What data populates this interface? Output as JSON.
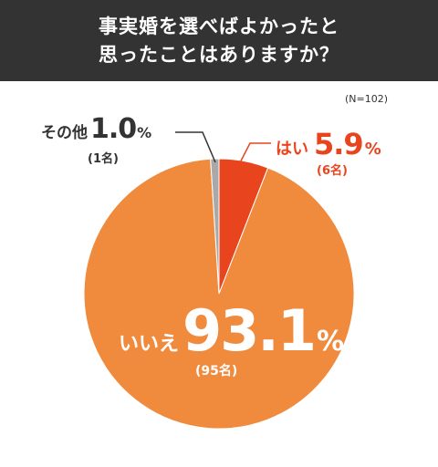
{
  "header": {
    "line1": "事実婚を選べばよかったと",
    "line2": "思ったことはありますか？"
  },
  "note": "(N=102)",
  "colors": {
    "header_bg": "#333333",
    "yes": "#e8451f",
    "no": "#f08b3e",
    "other": "#a9a9a9",
    "dark_text": "#333333"
  },
  "chart_data": {
    "type": "pie",
    "title": "事実婚を選べばよかったと思ったことはありますか？",
    "n_label": "(N=102)",
    "slices": [
      {
        "label": "はい",
        "value": 5.9,
        "percent_text": "5.9",
        "count": "(6名)",
        "color": "#e8451f"
      },
      {
        "label": "いいえ",
        "value": 93.1,
        "percent_text": "93.1",
        "count": "(95名)",
        "color": "#f08b3e"
      },
      {
        "label": "その他",
        "value": 1.0,
        "percent_text": "1.0",
        "count": "(1名)",
        "color": "#a9a9a9"
      }
    ],
    "unit": "%"
  }
}
